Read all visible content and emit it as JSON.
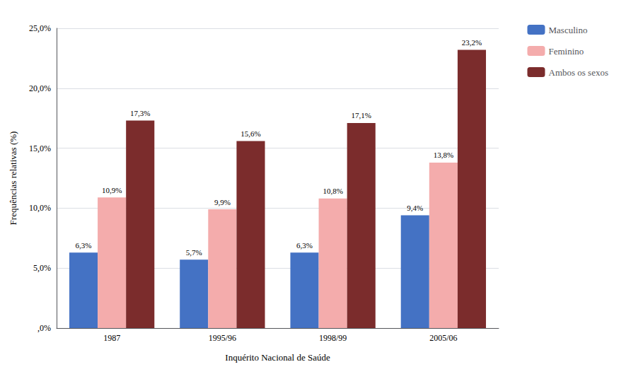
{
  "chart_data": {
    "type": "bar",
    "xlabel": "Inquérito Nacional de Saúde",
    "ylabel": "Frequências relativas (%)",
    "categories": [
      "1987",
      "1995/96",
      "1998/99",
      "2005/06"
    ],
    "series": [
      {
        "name": "Masculino",
        "color": "#4472C4",
        "values": [
          6.3,
          5.7,
          6.3,
          9.4
        ],
        "value_labels": [
          "6,3%",
          "5,7%",
          "6,3%",
          "9,4%"
        ]
      },
      {
        "name": "Feminino",
        "color": "#F4ACAC",
        "values": [
          10.9,
          9.9,
          10.8,
          13.8
        ],
        "value_labels": [
          "10,9%",
          "9,9%",
          "10,8%",
          "13,8%"
        ]
      },
      {
        "name": "Ambos os sexos",
        "color": "#7B2C2C",
        "values": [
          17.3,
          15.6,
          17.1,
          23.2
        ],
        "value_labels": [
          "17,3%",
          "15,6%",
          "17,1%",
          "23,2%"
        ]
      }
    ],
    "ylim": [
      0,
      25
    ],
    "yticks": [
      {
        "value": 0,
        "label": ",0%"
      },
      {
        "value": 5,
        "label": "5,0%"
      },
      {
        "value": 10,
        "label": "10,0%"
      },
      {
        "value": 15,
        "label": "15,0%"
      },
      {
        "value": 20,
        "label": "20,0%"
      },
      {
        "value": 25,
        "label": "25,0%"
      }
    ],
    "grid": true,
    "legend": "right",
    "data_labels": true
  }
}
